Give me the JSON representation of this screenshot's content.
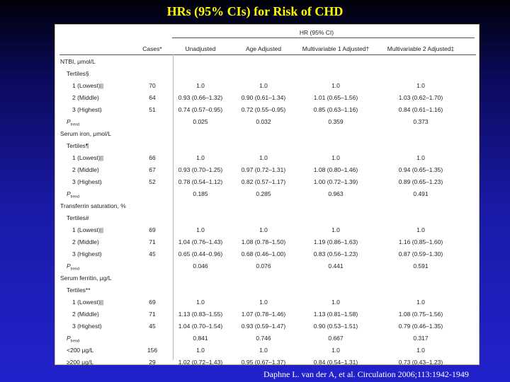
{
  "title": "HRs (95% CIs) for Risk of CHD",
  "citation": "Daphne L. van der A, et al.  Circulation 2006;113:1942-1949",
  "header": {
    "group_label": "HR (95% CI)",
    "columns": [
      "Cases*",
      "Unadjusted",
      "Age Adjusted",
      "Multivariable 1 Adjusted†",
      "Multivariable 2 Adjusted‡"
    ]
  },
  "rows": [
    {
      "label": "NTBI, μmol/L",
      "indent": 0,
      "cells": [
        "",
        "",
        "",
        "",
        ""
      ]
    },
    {
      "label": "Tertiles§",
      "indent": 1,
      "cells": [
        "",
        "",
        "",
        "",
        ""
      ]
    },
    {
      "label": "1 (Lowest)||",
      "indent": 2,
      "cells": [
        "70",
        "1.0",
        "1.0",
        "1.0",
        "1.0"
      ]
    },
    {
      "label": "2 (Middle)",
      "indent": 2,
      "cells": [
        "64",
        "0.93 (0.66–1.32)",
        "0.90 (0.61–1.34)",
        "1.01 (0.65–1.56)",
        "1.03 (0.62–1.70)"
      ]
    },
    {
      "label": "3 (Highest)",
      "indent": 2,
      "cells": [
        "51",
        "0.74 (0.57–0.95)",
        "0.72 (0.55–0.95)",
        "0.85 (0.63–1.16)",
        "0.84 (0.61–1.16)"
      ]
    },
    {
      "label": "P",
      "sub": "trend",
      "indent": 1,
      "cells": [
        "",
        "0.025",
        "0.032",
        "0.359",
        "0.373"
      ]
    },
    {
      "label": "Serum iron, μmol/L",
      "indent": 0,
      "cells": [
        "",
        "",
        "",
        "",
        ""
      ]
    },
    {
      "label": "Tertiles¶",
      "indent": 1,
      "cells": [
        "",
        "",
        "",
        "",
        ""
      ]
    },
    {
      "label": "1 (Lowest)||",
      "indent": 2,
      "cells": [
        "66",
        "1.0",
        "1.0",
        "1.0",
        "1.0"
      ]
    },
    {
      "label": "2 (Middle)",
      "indent": 2,
      "cells": [
        "67",
        "0.93 (0.70–1.25)",
        "0.97 (0.72–1.31)",
        "1.08 (0.80–1.46)",
        "0.94 (0.65–1.35)"
      ]
    },
    {
      "label": "3 (Highest)",
      "indent": 2,
      "cells": [
        "52",
        "0.78 (0.54–1.12)",
        "0.82 (0.57–1.17)",
        "1.00 (0.72–1.39)",
        "0.89 (0.65–1.23)"
      ]
    },
    {
      "label": "P",
      "sub": "trend",
      "indent": 1,
      "cells": [
        "",
        "0.185",
        "0.285",
        "0.963",
        "0.491"
      ]
    },
    {
      "label": "Transferrin saturation, %",
      "indent": 0,
      "cells": [
        "",
        "",
        "",
        "",
        ""
      ]
    },
    {
      "label": "Tertiles#",
      "indent": 1,
      "cells": [
        "",
        "",
        "",
        "",
        ""
      ]
    },
    {
      "label": "1 (Lowest)||",
      "indent": 2,
      "cells": [
        "69",
        "1.0",
        "1.0",
        "1.0",
        "1.0"
      ]
    },
    {
      "label": "2 (Middle)",
      "indent": 2,
      "cells": [
        "71",
        "1.04 (0.76–1.43)",
        "1.08 (0.78–1.50)",
        "1.19 (0.86–1.63)",
        "1.16 (0.85–1.60)"
      ]
    },
    {
      "label": "3 (Highest)",
      "indent": 2,
      "cells": [
        "45",
        "0.65 (0.44–0.96)",
        "0.68 (0.46–1.00)",
        "0.83 (0.56–1.23)",
        "0.87 (0.59–1.30)"
      ]
    },
    {
      "label": "P",
      "sub": "trend",
      "indent": 1,
      "cells": [
        "",
        "0.046",
        "0.076",
        "0.441",
        "0.591"
      ]
    },
    {
      "label": "Serum ferritin, μg/L",
      "indent": 0,
      "cells": [
        "",
        "",
        "",
        "",
        ""
      ]
    },
    {
      "label": "Tertiles**",
      "indent": 1,
      "cells": [
        "",
        "",
        "",
        "",
        ""
      ]
    },
    {
      "label": "1 (Lowest)||",
      "indent": 2,
      "cells": [
        "69",
        "1.0",
        "1.0",
        "1.0",
        "1.0"
      ]
    },
    {
      "label": "2 (Middle)",
      "indent": 2,
      "cells": [
        "71",
        "1.13 (0.83–1.55)",
        "1.07 (0.78–1.46)",
        "1.13 (0.81–1.58)",
        "1.08 (0.75–1.56)"
      ]
    },
    {
      "label": "3 (Highest)",
      "indent": 2,
      "cells": [
        "45",
        "1.04 (0.70–1.54)",
        "0.93 (0.59–1.47)",
        "0.90 (0.53–1.51)",
        "0.79 (0.46–1.35)"
      ]
    },
    {
      "label": "P",
      "sub": "trend",
      "indent": 1,
      "cells": [
        "",
        "0.841",
        "0.746",
        "0.667",
        "0.317"
      ]
    },
    {
      "label": "<200 μg/L",
      "indent": 1,
      "cells": [
        "156",
        "1.0",
        "1.0",
        "1.0",
        "1.0"
      ]
    },
    {
      "label": "≥200 μg/L",
      "indent": 1,
      "cells": [
        "29",
        "1.02 (0.72–1.43)",
        "0.95 (0.67–1.37)",
        "0.84 (0.54–1.31)",
        "0.73 (0.43–1.23)"
      ]
    }
  ]
}
